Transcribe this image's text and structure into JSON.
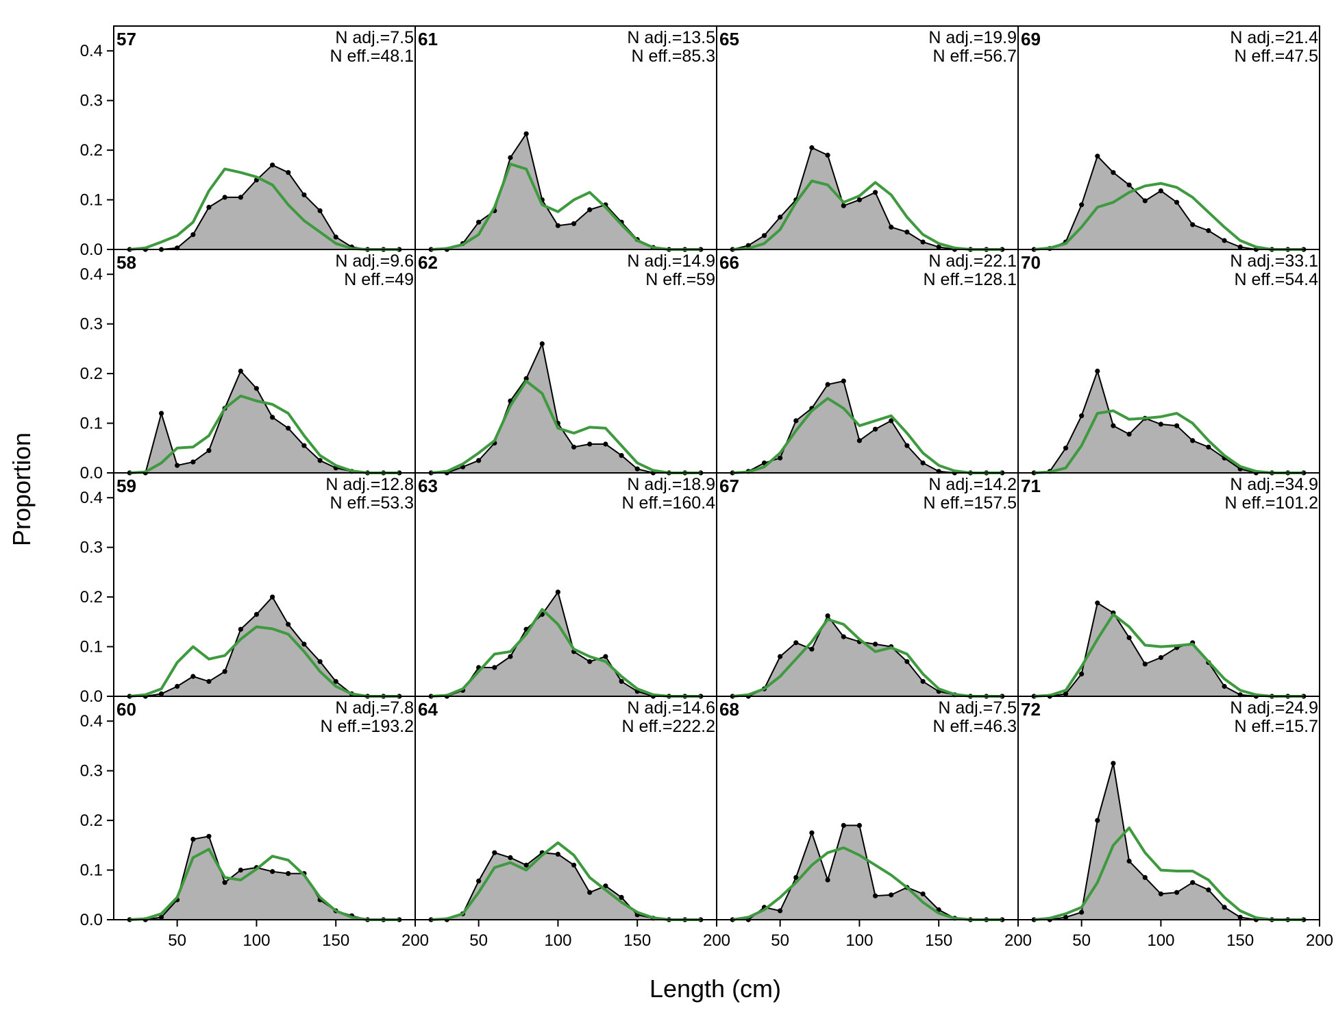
{
  "chart_data": {
    "type": "area",
    "xlabel": "Length (cm)",
    "ylabel": "Proportion",
    "xlim": [
      10,
      200
    ],
    "ylim": [
      0,
      0.45
    ],
    "x_ticks": [
      50,
      100,
      150,
      200
    ],
    "y_ticks": [
      0.0,
      0.1,
      0.2,
      0.3,
      0.4
    ],
    "y_tick_labels": [
      "0.0",
      "0.1",
      "0.2",
      "0.3",
      "0.4"
    ],
    "grid": false,
    "bins": [
      20,
      30,
      40,
      50,
      60,
      70,
      80,
      90,
      100,
      110,
      120,
      130,
      140,
      150,
      160,
      170,
      180,
      190
    ],
    "colors": {
      "observed_fill": "#b2b2b2",
      "observed_line": "#000000",
      "expected_line": "#3f9a3f",
      "zero_line": "#c0c0c0"
    },
    "panels": [
      {
        "id": "57",
        "n_adj": "N adj.=7.5",
        "n_eff": "N eff.=48.1",
        "observed": [
          0,
          0,
          0,
          0.003,
          0.03,
          0.085,
          0.105,
          0.105,
          0.14,
          0.17,
          0.155,
          0.11,
          0.078,
          0.025,
          0.005,
          0,
          0,
          0
        ],
        "expected": [
          0,
          0.003,
          0.015,
          0.028,
          0.055,
          0.118,
          0.162,
          0.155,
          0.146,
          0.13,
          0.09,
          0.058,
          0.035,
          0.012,
          0.002,
          0,
          0,
          0
        ]
      },
      {
        "id": "58",
        "n_adj": "N adj.=9.6",
        "n_eff": "N eff.=49",
        "observed": [
          0,
          0,
          0.12,
          0.015,
          0.022,
          0.045,
          0.13,
          0.205,
          0.17,
          0.112,
          0.09,
          0.055,
          0.025,
          0.01,
          0.003,
          0,
          0,
          0
        ],
        "expected": [
          0,
          0.002,
          0.02,
          0.05,
          0.052,
          0.075,
          0.13,
          0.155,
          0.145,
          0.138,
          0.12,
          0.075,
          0.035,
          0.015,
          0.004,
          0,
          0,
          0
        ]
      },
      {
        "id": "59",
        "n_adj": "N adj.=12.8",
        "n_eff": "N eff.=53.3",
        "observed": [
          0,
          0,
          0.005,
          0.02,
          0.04,
          0.03,
          0.05,
          0.135,
          0.165,
          0.2,
          0.145,
          0.105,
          0.07,
          0.03,
          0.005,
          0,
          0,
          0
        ],
        "expected": [
          0,
          0.003,
          0.015,
          0.068,
          0.1,
          0.075,
          0.082,
          0.115,
          0.14,
          0.136,
          0.125,
          0.09,
          0.05,
          0.02,
          0.005,
          0,
          0,
          0
        ]
      },
      {
        "id": "60",
        "n_adj": "N adj.=7.8",
        "n_eff": "N eff.=193.2",
        "observed": [
          0,
          0,
          0.005,
          0.04,
          0.162,
          0.168,
          0.075,
          0.1,
          0.105,
          0.097,
          0.093,
          0.093,
          0.04,
          0.018,
          0.008,
          0,
          0,
          0
        ],
        "expected": [
          0,
          0.002,
          0.012,
          0.045,
          0.125,
          0.142,
          0.085,
          0.08,
          0.102,
          0.128,
          0.12,
          0.09,
          0.045,
          0.018,
          0.005,
          0,
          0,
          0
        ]
      },
      {
        "id": "61",
        "n_adj": "N adj.=13.5",
        "n_eff": "N eff.=85.3",
        "observed": [
          0,
          0,
          0.012,
          0.055,
          0.078,
          0.185,
          0.233,
          0.1,
          0.048,
          0.052,
          0.08,
          0.09,
          0.055,
          0.02,
          0.004,
          0,
          0,
          0
        ],
        "expected": [
          0,
          0.002,
          0.01,
          0.03,
          0.085,
          0.172,
          0.162,
          0.09,
          0.076,
          0.1,
          0.115,
          0.085,
          0.05,
          0.018,
          0.004,
          0,
          0,
          0
        ]
      },
      {
        "id": "62",
        "n_adj": "N adj.=14.9",
        "n_eff": "N eff.=59",
        "observed": [
          0,
          0,
          0.012,
          0.025,
          0.06,
          0.145,
          0.19,
          0.26,
          0.1,
          0.052,
          0.058,
          0.058,
          0.035,
          0.008,
          0,
          0,
          0,
          0
        ],
        "expected": [
          0,
          0.003,
          0.018,
          0.04,
          0.065,
          0.135,
          0.185,
          0.16,
          0.09,
          0.08,
          0.092,
          0.09,
          0.055,
          0.02,
          0.005,
          0,
          0,
          0
        ]
      },
      {
        "id": "63",
        "n_adj": "N adj.=18.9",
        "n_eff": "N eff.=160.4",
        "observed": [
          0,
          0,
          0.012,
          0.058,
          0.058,
          0.08,
          0.135,
          0.165,
          0.21,
          0.09,
          0.07,
          0.08,
          0.03,
          0.01,
          0,
          0,
          0,
          0
        ],
        "expected": [
          0,
          0.002,
          0.015,
          0.05,
          0.085,
          0.09,
          0.125,
          0.175,
          0.145,
          0.095,
          0.08,
          0.07,
          0.04,
          0.015,
          0.003,
          0,
          0,
          0
        ]
      },
      {
        "id": "64",
        "n_adj": "N adj.=14.6",
        "n_eff": "N eff.=222.2",
        "observed": [
          0,
          0,
          0.012,
          0.078,
          0.135,
          0.125,
          0.11,
          0.135,
          0.132,
          0.11,
          0.055,
          0.068,
          0.045,
          0.01,
          0.003,
          0,
          0,
          0
        ],
        "expected": [
          0,
          0.002,
          0.012,
          0.055,
          0.105,
          0.115,
          0.1,
          0.13,
          0.155,
          0.13,
          0.085,
          0.06,
          0.035,
          0.015,
          0.004,
          0,
          0,
          0
        ]
      },
      {
        "id": "65",
        "n_adj": "N adj.=19.9",
        "n_eff": "N eff.=56.7",
        "observed": [
          0,
          0.008,
          0.028,
          0.065,
          0.1,
          0.205,
          0.19,
          0.088,
          0.1,
          0.115,
          0.045,
          0.035,
          0.015,
          0.005,
          0,
          0,
          0,
          0
        ],
        "expected": [
          0,
          0.002,
          0.012,
          0.04,
          0.095,
          0.138,
          0.13,
          0.095,
          0.108,
          0.135,
          0.11,
          0.065,
          0.03,
          0.012,
          0.003,
          0,
          0,
          0
        ]
      },
      {
        "id": "66",
        "n_adj": "N adj.=22.1",
        "n_eff": "N eff.=128.1",
        "observed": [
          0,
          0.003,
          0.02,
          0.03,
          0.105,
          0.13,
          0.178,
          0.185,
          0.065,
          0.088,
          0.105,
          0.055,
          0.02,
          0.003,
          0,
          0,
          0,
          0
        ],
        "expected": [
          0,
          0.002,
          0.012,
          0.04,
          0.085,
          0.125,
          0.15,
          0.13,
          0.095,
          0.105,
          0.115,
          0.08,
          0.04,
          0.015,
          0.004,
          0,
          0,
          0
        ]
      },
      {
        "id": "67",
        "n_adj": "N adj.=14.2",
        "n_eff": "N eff.=157.5",
        "observed": [
          0,
          0,
          0.015,
          0.08,
          0.108,
          0.095,
          0.162,
          0.12,
          0.11,
          0.105,
          0.1,
          0.07,
          0.03,
          0.01,
          0.003,
          0,
          0,
          0
        ],
        "expected": [
          0,
          0.003,
          0.015,
          0.04,
          0.075,
          0.11,
          0.155,
          0.145,
          0.115,
          0.09,
          0.098,
          0.085,
          0.045,
          0.015,
          0.004,
          0,
          0,
          0
        ]
      },
      {
        "id": "68",
        "n_adj": "N adj.=7.5",
        "n_eff": "N eff.=46.3",
        "observed": [
          0,
          0,
          0.025,
          0.018,
          0.085,
          0.175,
          0.08,
          0.19,
          0.19,
          0.048,
          0.05,
          0.065,
          0.052,
          0.02,
          0.003,
          0,
          0,
          0
        ],
        "expected": [
          0,
          0.005,
          0.02,
          0.045,
          0.075,
          0.11,
          0.135,
          0.145,
          0.13,
          0.11,
          0.09,
          0.065,
          0.035,
          0.013,
          0.003,
          0,
          0,
          0
        ]
      },
      {
        "id": "69",
        "n_adj": "N adj.=21.4",
        "n_eff": "N eff.=47.5",
        "observed": [
          0,
          0.002,
          0.015,
          0.09,
          0.188,
          0.155,
          0.13,
          0.098,
          0.118,
          0.095,
          0.05,
          0.038,
          0.018,
          0.005,
          0,
          0,
          0,
          0
        ],
        "expected": [
          0,
          0.003,
          0.012,
          0.045,
          0.085,
          0.095,
          0.115,
          0.128,
          0.133,
          0.125,
          0.105,
          0.075,
          0.045,
          0.018,
          0.005,
          0,
          0,
          0
        ]
      },
      {
        "id": "70",
        "n_adj": "N adj.=33.1",
        "n_eff": "N eff.=54.4",
        "observed": [
          0,
          0.003,
          0.05,
          0.115,
          0.205,
          0.095,
          0.078,
          0.11,
          0.098,
          0.095,
          0.065,
          0.052,
          0.03,
          0.008,
          0,
          0,
          0,
          0
        ],
        "expected": [
          0,
          0.002,
          0.01,
          0.055,
          0.12,
          0.125,
          0.108,
          0.11,
          0.113,
          0.12,
          0.1,
          0.065,
          0.035,
          0.013,
          0.003,
          0,
          0,
          0
        ]
      },
      {
        "id": "71",
        "n_adj": "N adj.=34.9",
        "n_eff": "N eff.=101.2",
        "observed": [
          0,
          0,
          0.005,
          0.045,
          0.188,
          0.168,
          0.118,
          0.065,
          0.078,
          0.098,
          0.108,
          0.068,
          0.02,
          0.003,
          0,
          0,
          0,
          0
        ],
        "expected": [
          0,
          0.002,
          0.012,
          0.06,
          0.115,
          0.165,
          0.14,
          0.103,
          0.1,
          0.102,
          0.105,
          0.07,
          0.035,
          0.012,
          0.003,
          0,
          0,
          0
        ]
      },
      {
        "id": "72",
        "n_adj": "N adj.=24.9",
        "n_eff": "N eff.=15.7",
        "observed": [
          0,
          0,
          0.005,
          0.015,
          0.2,
          0.315,
          0.118,
          0.085,
          0.052,
          0.055,
          0.075,
          0.06,
          0.025,
          0.005,
          0,
          0,
          0,
          0
        ],
        "expected": [
          0,
          0.003,
          0.012,
          0.025,
          0.075,
          0.15,
          0.185,
          0.135,
          0.1,
          0.098,
          0.098,
          0.08,
          0.045,
          0.018,
          0.004,
          0,
          0,
          0
        ]
      }
    ]
  }
}
